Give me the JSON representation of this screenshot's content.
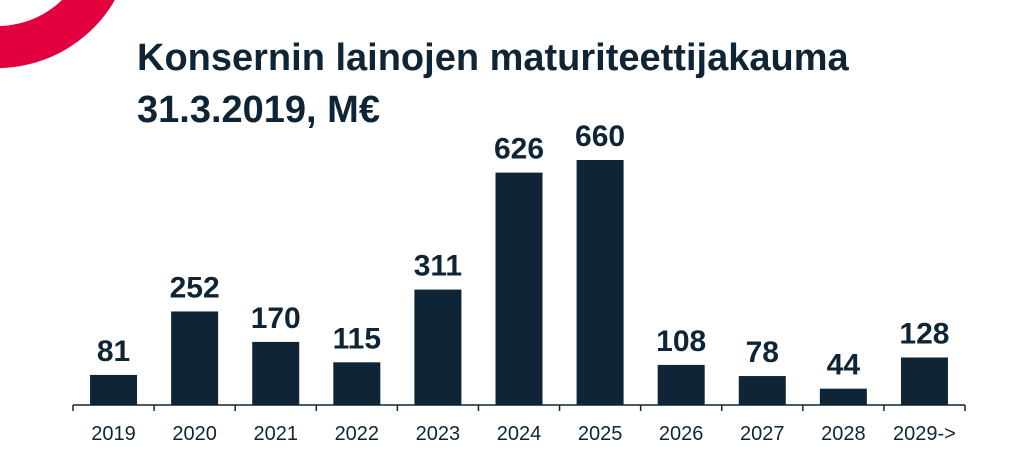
{
  "colors": {
    "bar": "#0f2536",
    "accent": "#e3003f",
    "text": "#0f2536"
  },
  "chart_data": {
    "type": "bar",
    "title": "Konsernin lainojen maturiteettijakauma",
    "subtitle": "31.3.2019, M€",
    "categories": [
      "2019",
      "2020",
      "2021",
      "2022",
      "2023",
      "2024",
      "2025",
      "2026",
      "2027",
      "2028",
      "2029->"
    ],
    "values": [
      81,
      252,
      170,
      115,
      311,
      626,
      660,
      108,
      78,
      44,
      128
    ],
    "xlabel": "",
    "ylabel": "",
    "ylim": [
      0,
      700
    ],
    "grid": false,
    "legend": "none",
    "data_labels": true
  }
}
